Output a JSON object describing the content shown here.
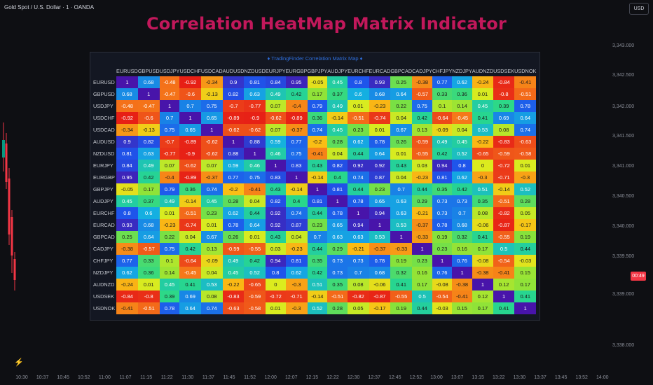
{
  "chart_header": {
    "symbol": "Gold Spot / U.S. Dollar · 1 · OANDA",
    "currency": "USD"
  },
  "title": "Correlation HeatMap Matrix Indicator",
  "matrix_header": "♦ TradingFinder Correlation Matrix Map ♦",
  "pairs": [
    "EURUSD",
    "GBPUSD",
    "USDJPY",
    "USDCHF",
    "USDCAD",
    "AUDUSD",
    "NZDUSD",
    "EURJPY",
    "EURGBP",
    "GBPJPY",
    "AUDJPY",
    "EURCHF",
    "EURCAD",
    "GBPCAD",
    "CADJPY",
    "CHFJPY",
    "NZDJPY",
    "AUDNZD",
    "USDSEK",
    "USDNOK"
  ],
  "chart_data": {
    "type": "heatmap",
    "title": "Correlation HeatMap Matrix Indicator",
    "x": [
      "EURUSD",
      "GBPUSD",
      "USDJPY",
      "USDCHF",
      "USDCAD",
      "AUDUSD",
      "NZDUSD",
      "EURJPY",
      "EURGBP",
      "GBPJPY",
      "AUDJPY",
      "EURCHF",
      "EURCAD",
      "GBPCAD",
      "CADJPY",
      "CHFJPY",
      "NZDJPY",
      "AUDNZD",
      "USDSEK",
      "USDNOK"
    ],
    "y": [
      "EURUSD",
      "GBPUSD",
      "USDJPY",
      "USDCHF",
      "USDCAD",
      "AUDUSD",
      "NZDUSD",
      "EURJPY",
      "EURGBP",
      "GBPJPY",
      "AUDJPY",
      "EURCHF",
      "EURCAD",
      "GBPCAD",
      "CADJPY",
      "CHFJPY",
      "NZDJPY",
      "AUDNZD",
      "USDSEK",
      "USDNOK"
    ],
    "values": [
      [
        "1",
        "0.68",
        "-0.48",
        "-0.92",
        "-0.34",
        "0.9",
        "0.81",
        "0.84",
        "0.95",
        "-0.05",
        "0.45",
        "0.8",
        "0.93",
        "0.25",
        "-0.38",
        "0.77",
        "0.62",
        "-0.24",
        "-0.84",
        "-0.41"
      ],
      [
        "0.68",
        "1",
        "-0.47",
        "-0.6",
        "-0.13",
        "0.82",
        "0.63",
        "0.49",
        "0.42",
        "0.17",
        "0.37",
        "0.6",
        "0.68",
        "0.64",
        "-0.57",
        "0.33",
        "0.36",
        "0.01",
        "-0.8",
        "-0.51"
      ],
      [
        "-0.48",
        "-0.47",
        "1",
        "0.7",
        "0.75",
        "-0.7",
        "-0.77",
        "0.07",
        "-0.4",
        "0.79",
        "0.49",
        "0.01",
        "-0.23",
        "0.22",
        "0.75",
        "0.1",
        "0.14",
        "0.45",
        "0.39",
        "0.78"
      ],
      [
        "-0.92",
        "-0.6",
        "0.7",
        "1",
        "0.65",
        "-0.89",
        "-0.9",
        "-0.62",
        "-0.89",
        "0.36",
        "-0.14",
        "-0.51",
        "-0.74",
        "0.04",
        "0.42",
        "-0.64",
        "-0.45",
        "0.41",
        "0.69",
        "0.64"
      ],
      [
        "-0.34",
        "-0.13",
        "0.75",
        "0.65",
        "1",
        "-0.62",
        "-0.62",
        "0.07",
        "-0.37",
        "0.74",
        "0.45",
        "0.23",
        "0.01",
        "0.67",
        "0.13",
        "-0.09",
        "0.04",
        "0.53",
        "0.08",
        "0.74"
      ],
      [
        "0.9",
        "0.82",
        "-0.7",
        "-0.89",
        "-0.62",
        "1",
        "0.88",
        "0.59",
        "0.77",
        "-0.2",
        "0.28",
        "0.62",
        "0.78",
        "0.26",
        "-0.59",
        "0.49",
        "0.45",
        "-0.22",
        "-0.83",
        "-0.63"
      ],
      [
        "0.81",
        "0.63",
        "-0.77",
        "-0.9",
        "-0.62",
        "0.88",
        "1",
        "0.46",
        "0.75",
        "-0.41",
        "0.04",
        "0.44",
        "0.64",
        "0.01",
        "-0.55",
        "0.42",
        "0.52",
        "-0.65",
        "-0.59",
        "-0.58"
      ],
      [
        "0.84",
        "0.49",
        "0.07",
        "-0.62",
        "0.07",
        "0.59",
        "0.46",
        "1",
        "0.83",
        "0.43",
        "0.82",
        "0.92",
        "0.92",
        "0.43",
        "0.03",
        "0.94",
        "0.8",
        "0",
        "-0.72",
        "0.01"
      ],
      [
        "0.95",
        "0.42",
        "-0.4",
        "-0.89",
        "-0.37",
        "0.77",
        "0.75",
        "0.83",
        "1",
        "-0.14",
        "0.4",
        "0.74",
        "0.87",
        "0.04",
        "-0.23",
        "0.81",
        "0.62",
        "-0.3",
        "-0.71",
        "-0.3"
      ],
      [
        "-0.05",
        "0.17",
        "0.79",
        "0.36",
        "0.74",
        "-0.2",
        "-0.41",
        "0.43",
        "-0.14",
        "1",
        "0.81",
        "0.44",
        "0.23",
        "0.7",
        "0.44",
        "0.35",
        "0.42",
        "0.51",
        "-0.14",
        "0.52"
      ],
      [
        "0.45",
        "0.37",
        "0.49",
        "-0.14",
        "0.45",
        "0.28",
        "0.04",
        "0.82",
        "0.4",
        "0.81",
        "1",
        "0.78",
        "0.65",
        "0.63",
        "0.29",
        "0.73",
        "0.73",
        "0.35",
        "-0.51",
        "0.28"
      ],
      [
        "0.8",
        "0.6",
        "0.01",
        "-0.51",
        "0.23",
        "0.62",
        "0.44",
        "0.92",
        "0.74",
        "0.44",
        "0.78",
        "1",
        "0.94",
        "0.63",
        "-0.21",
        "0.73",
        "0.7",
        "0.08",
        "-0.82",
        "0.05"
      ],
      [
        "0.93",
        "0.68",
        "-0.23",
        "-0.74",
        "0.01",
        "0.78",
        "0.64",
        "0.92",
        "0.87",
        "0.23",
        "0.65",
        "0.94",
        "1",
        "0.53",
        "-0.37",
        "0.78",
        "0.68",
        "-0.06",
        "-0.87",
        "-0.17"
      ],
      [
        "0.25",
        "0.64",
        "0.22",
        "0.04",
        "0.67",
        "0.26",
        "0.01",
        "0.43",
        "0.04",
        "0.7",
        "0.63",
        "0.63",
        "0.53",
        "1",
        "-0.33",
        "0.19",
        "0.32",
        "0.41",
        "-0.55",
        "0.19"
      ],
      [
        "-0.38",
        "-0.57",
        "0.75",
        "0.42",
        "0.13",
        "-0.59",
        "-0.55",
        "0.03",
        "-0.23",
        "0.44",
        "0.29",
        "-0.21",
        "-0.37",
        "-0.33",
        "1",
        "0.23",
        "0.16",
        "0.17",
        "0.5",
        "0.44"
      ],
      [
        "0.77",
        "0.33",
        "0.1",
        "-0.64",
        "-0.09",
        "0.49",
        "0.42",
        "0.94",
        "0.81",
        "0.35",
        "0.73",
        "0.73",
        "0.78",
        "0.19",
        "0.23",
        "1",
        "0.76",
        "-0.08",
        "-0.54",
        "-0.03"
      ],
      [
        "0.62",
        "0.36",
        "0.14",
        "-0.45",
        "0.04",
        "0.45",
        "0.52",
        "0.8",
        "0.62",
        "0.42",
        "0.73",
        "0.7",
        "0.68",
        "0.32",
        "0.16",
        "0.76",
        "1",
        "-0.38",
        "-0.41",
        "0.15"
      ],
      [
        "-0.24",
        "0.01",
        "0.45",
        "0.41",
        "0.53",
        "-0.22",
        "-0.65",
        "0",
        "-0.3",
        "0.51",
        "0.35",
        "0.08",
        "-0.06",
        "0.41",
        "0.17",
        "-0.08",
        "-0.38",
        "1",
        "0.12",
        "0.17"
      ],
      [
        "-0.84",
        "-0.8",
        "0.39",
        "0.69",
        "0.08",
        "-0.83",
        "-0.59",
        "-0.72",
        "-0.71",
        "-0.14",
        "-0.51",
        "-0.82",
        "-0.87",
        "-0.55",
        "0.5",
        "-0.54",
        "-0.41",
        "0.12",
        "1",
        "0.41"
      ],
      [
        "-0.41",
        "-0.51",
        "0.78",
        "0.64",
        "0.74",
        "-0.63",
        "-0.58",
        "0.01",
        "-0.3",
        "0.52",
        "0.28",
        "0.05",
        "-0.17",
        "0.19",
        "0.44",
        "-0.03",
        "0.15",
        "0.17",
        "0.41",
        "1"
      ]
    ]
  },
  "price_scale": [
    "3,343.000",
    "3,342.500",
    "3,342.000",
    "3,341.500",
    "3,341.000",
    "3,340.500",
    "3,340.000",
    "3,339.500",
    "3,339.000",
    "3,338.000"
  ],
  "price_tag": "00:49",
  "time_axis": [
    "10:30",
    "10:37",
    "10:45",
    "10:52",
    "11:00",
    "11:07",
    "11:15",
    "11:22",
    "11:30",
    "11:37",
    "11:45",
    "11:52",
    "12:00",
    "12:07",
    "12:15",
    "12:22",
    "12:30",
    "12:37",
    "12:45",
    "12:52",
    "13:00",
    "13:07",
    "13:15",
    "13:22",
    "13:30",
    "13:37",
    "13:45",
    "13:52",
    "14:00"
  ],
  "colors": {
    "title": "#c2185b",
    "header": "#2e6dd8",
    "bull": "#089981",
    "bear": "#f23645"
  }
}
